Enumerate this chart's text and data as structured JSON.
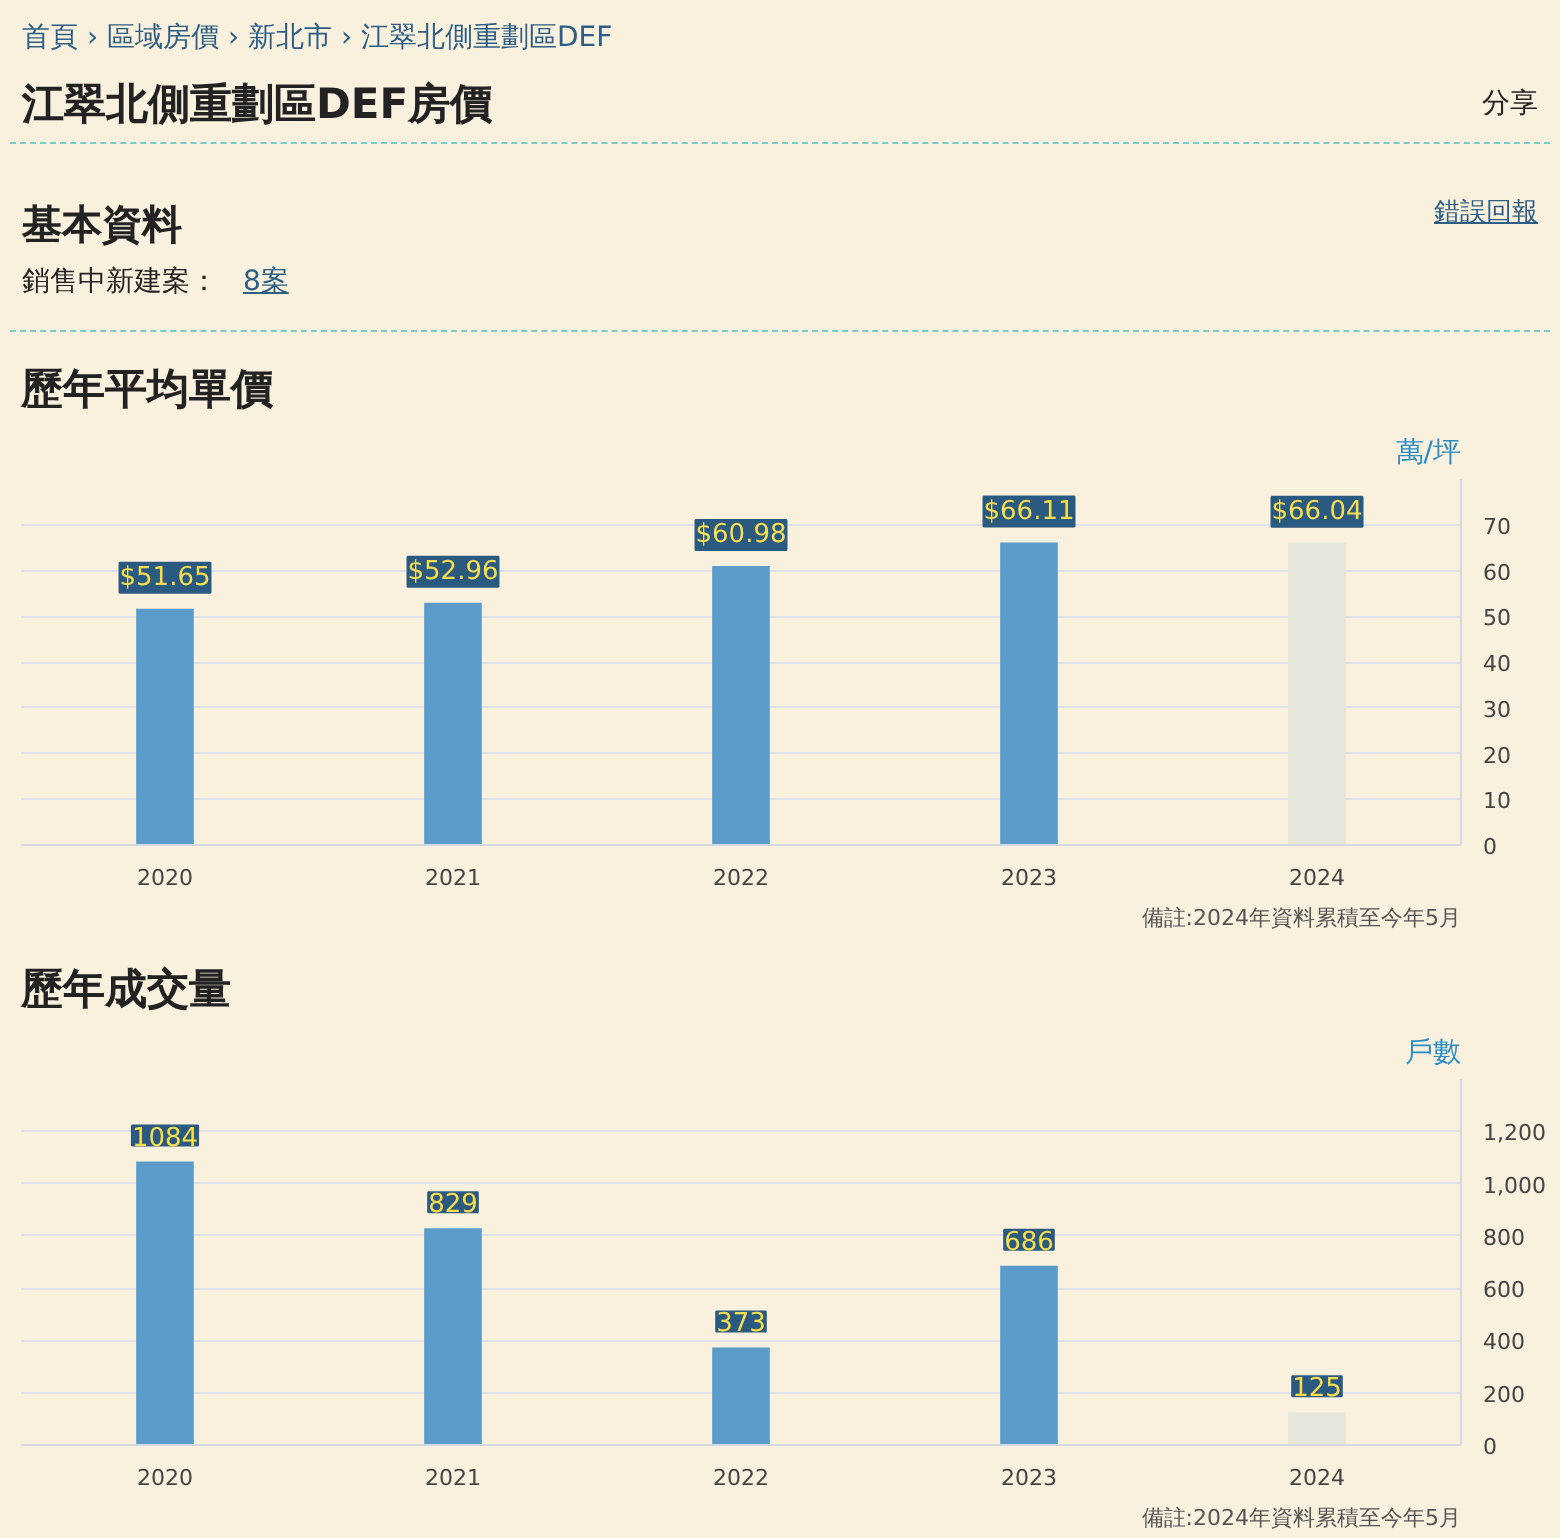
{
  "chart_data": [
    {
      "type": "other",
      "title": "江翠北側重劃區DEF房價",
      "annotations": [
        "首頁 › 區域房價 › 新北市 › 江翠北側重劃區DEF",
        "分享",
        "基本資料",
        "錯誤回報",
        "銷售中新建案：",
        "8案"
      ]
    },
    {
      "type": "bar",
      "title": "歷年平均單價",
      "ylabel": "萬/坪",
      "categories": [
        "2020",
        "2021",
        "2022",
        "2023",
        "2024"
      ],
      "values": [
        51.65,
        52.96,
        60.98,
        66.11,
        66.04
      ],
      "value_labels": [
        "$51.65",
        "$52.96",
        "$60.98",
        "$66.11",
        "$66.04"
      ],
      "colors": [
        "#5b9bc9",
        "#5b9bc9",
        "#5b9bc9",
        "#5b9bc9",
        "#e6e6dc"
      ],
      "ylim": [
        0,
        80
      ],
      "yticks": [
        0,
        10,
        20,
        30,
        40,
        50,
        60,
        70
      ],
      "grid": "y",
      "annotations": [
        "備註:2024年資料累積至今年5月"
      ]
    },
    {
      "type": "bar",
      "title": "歷年成交量",
      "ylabel": "戶數",
      "categories": [
        "2020",
        "2021",
        "2022",
        "2023",
        "2024"
      ],
      "values": [
        1084,
        829,
        373,
        686,
        125
      ],
      "data_labels": true,
      "colors": [
        "#5b9bc9",
        "#5b9bc9",
        "#5b9bc9",
        "#5b9bc9",
        "#e6e6dc"
      ],
      "ylim": [
        0,
        1400
      ],
      "yticks": [
        0,
        {
          "value": 200,
          "label": "200"
        },
        {
          "value": 400,
          "label": "400"
        },
        {
          "value": 600,
          "label": "600"
        },
        {
          "value": 800,
          "label": "800"
        },
        {
          "value": 1000,
          "label": "1,000"
        },
        {
          "value": 1200,
          "label": "1,200"
        }
      ],
      "grid": "y",
      "annotations": [
        "備註:2024年資料累積至今年5月"
      ]
    }
  ]
}
